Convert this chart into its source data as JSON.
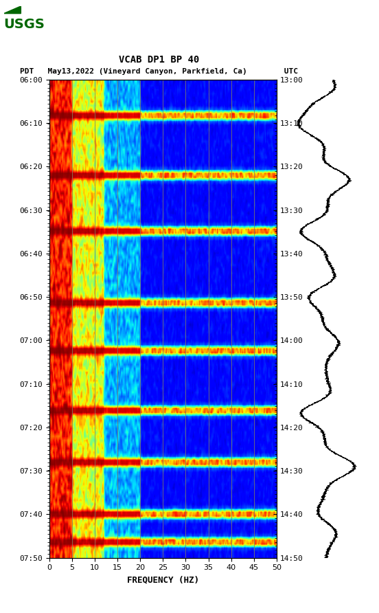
{
  "title_line1": "VCAB DP1 BP 40",
  "title_line2": "PDT   May13,2022 (Vineyard Canyon, Parkfield, Ca)        UTC",
  "xlabel": "FREQUENCY (HZ)",
  "freq_min": 0,
  "freq_max": 50,
  "freq_ticks": [
    0,
    5,
    10,
    15,
    20,
    25,
    30,
    35,
    40,
    45,
    50
  ],
  "left_time_labels": [
    "06:00",
    "06:10",
    "06:20",
    "06:30",
    "06:40",
    "06:50",
    "07:00",
    "07:10",
    "07:20",
    "07:30",
    "07:40",
    "07:50"
  ],
  "right_time_labels": [
    "13:00",
    "13:10",
    "13:20",
    "13:30",
    "13:40",
    "13:50",
    "14:00",
    "14:10",
    "14:20",
    "14:30",
    "14:40",
    "14:50"
  ],
  "n_time_steps": 120,
  "n_freq_steps": 200,
  "background_color": "#ffffff",
  "colormap": "jet",
  "vertical_lines_freq": [
    5,
    10,
    15,
    20,
    25,
    30,
    35,
    40,
    45
  ],
  "vertical_line_color": "#808060",
  "fig_width": 5.52,
  "fig_height": 8.92
}
